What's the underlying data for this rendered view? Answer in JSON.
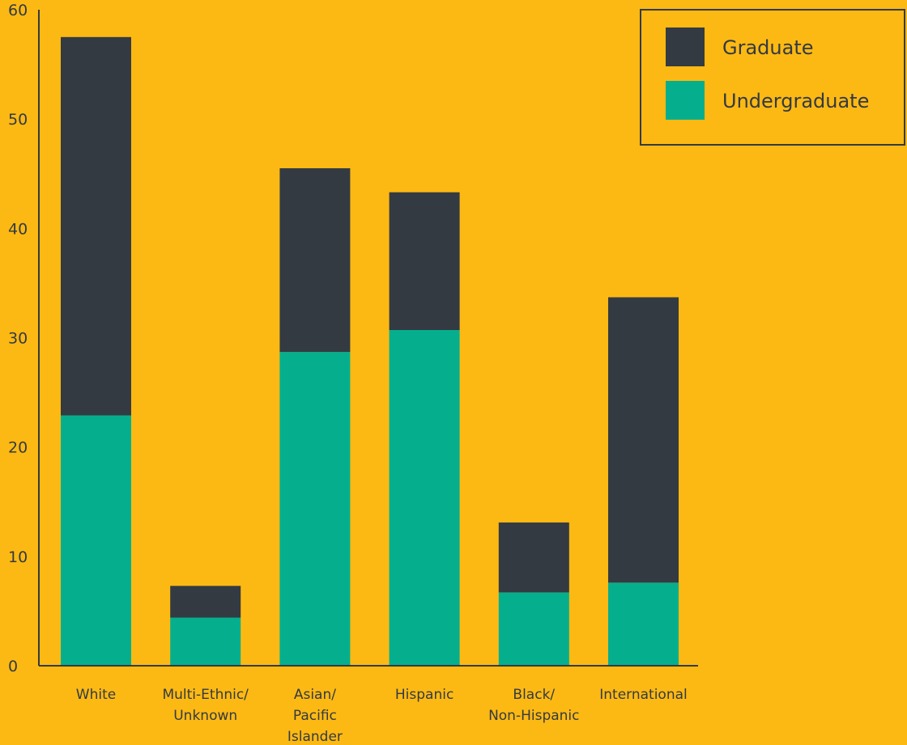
{
  "colors": {
    "background": "#FDB913",
    "graduate": "#333A42",
    "undergraduate": "#05AF8E",
    "axis": "#333A42",
    "text": "#333A42"
  },
  "chart_data": {
    "type": "bar",
    "stacked": true,
    "title": "",
    "xlabel": "",
    "ylabel": "",
    "ylim": [
      0,
      60
    ],
    "yticks": [
      0,
      10,
      20,
      30,
      40,
      50,
      60
    ],
    "grid": false,
    "legend_position": "top-right",
    "categories": [
      [
        "White"
      ],
      [
        "Multi-Ethnic/",
        "Unknown"
      ],
      [
        "Asian/",
        "Pacific",
        "Islander"
      ],
      [
        "Hispanic"
      ],
      [
        "Black/",
        "Non-Hispanic"
      ],
      [
        "International"
      ]
    ],
    "series": [
      {
        "name": "Undergraduate",
        "color": "#05AF8E",
        "values": [
          22.9,
          4.4,
          28.7,
          30.7,
          6.7,
          7.6
        ]
      },
      {
        "name": "Graduate",
        "color": "#333A42",
        "values": [
          34.6,
          2.9,
          16.8,
          12.6,
          6.4,
          26.1
        ]
      }
    ],
    "legend_order": [
      "Graduate",
      "Undergraduate"
    ]
  }
}
